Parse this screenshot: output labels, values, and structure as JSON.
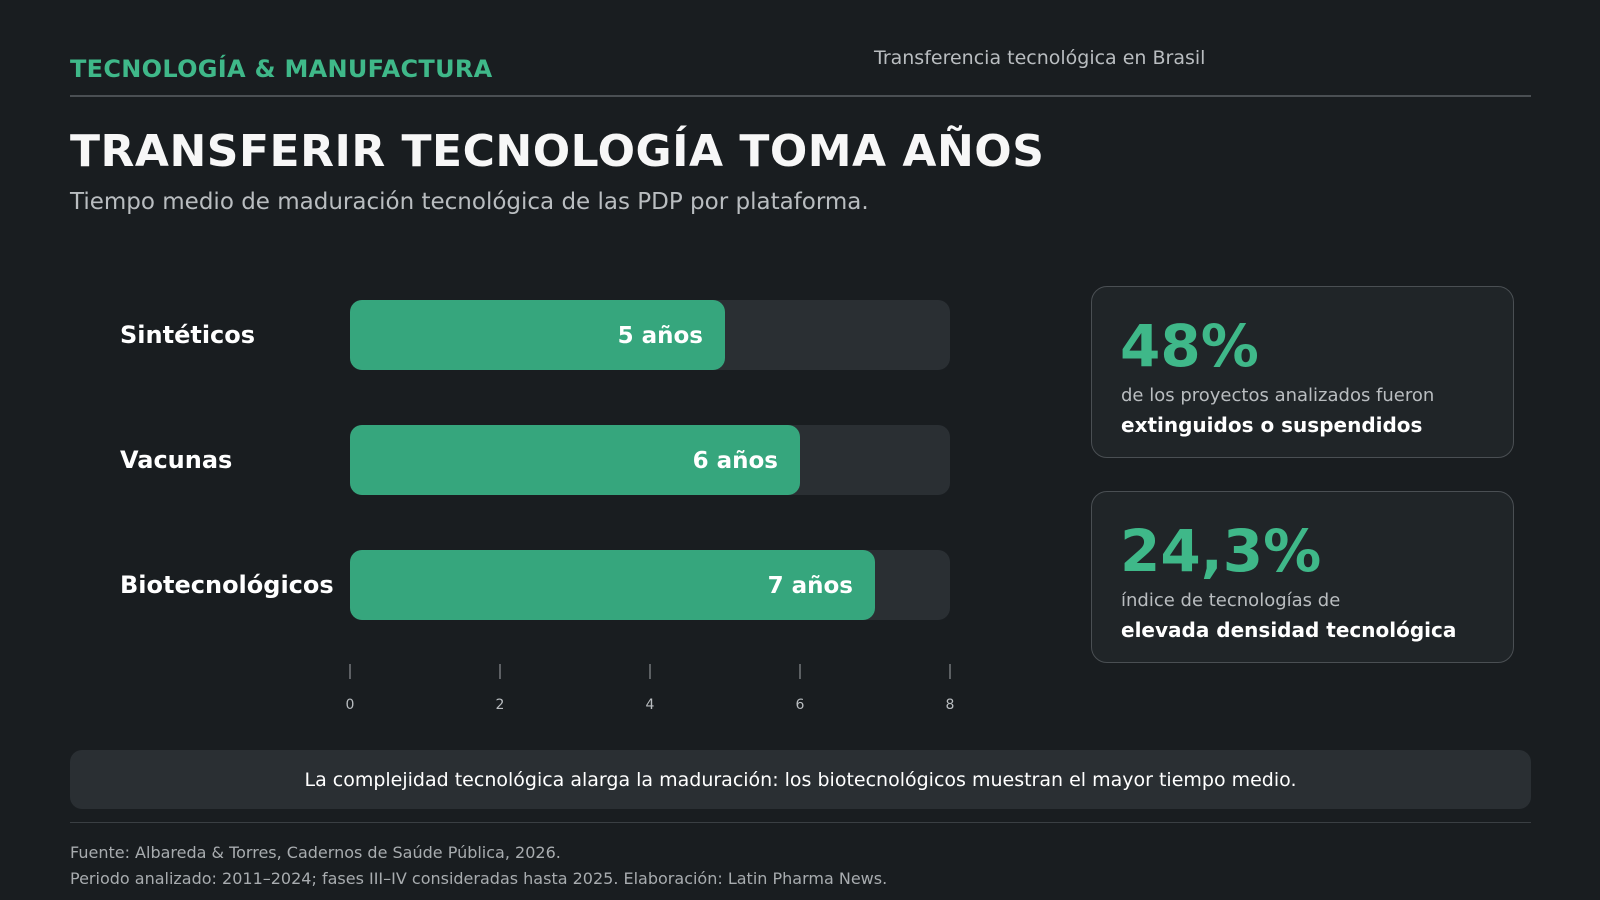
{
  "header": {
    "kicker": "TECNOLOGÍA & MANUFACTURA",
    "topic": "Transferencia tecnológica en Brasil"
  },
  "title": "TRANSFERIR TECNOLOGÍA TOMA AÑOS",
  "subtitle": "Tiempo medio de maduración tecnológica de las PDP por plataforma.",
  "chart_data": {
    "type": "bar",
    "orientation": "horizontal",
    "categories": [
      "Sintéticos",
      "Vacunas",
      "Biotecnológicos"
    ],
    "values": [
      5,
      6,
      7
    ],
    "value_labels": [
      "5 años",
      "6 años",
      "7 años"
    ],
    "xlim": [
      0,
      8
    ],
    "xticks": [
      "0",
      "2",
      "4",
      "6",
      "8"
    ],
    "grid": false,
    "bar_color": "#36a67d",
    "track_color": "#2a2f33"
  },
  "stats": [
    {
      "value": "48%",
      "line1": "de los proyectos analizados fueron",
      "line2": "extinguidos o suspendidos"
    },
    {
      "value": "24,3%",
      "line1": "índice de tecnologías de",
      "line2": "elevada densidad tecnológica"
    }
  ],
  "takeaway": "La complejidad tecnológica alarga la maduración: los biotecnológicos muestran el mayor tiempo medio.",
  "footer": {
    "source": "Fuente: Albareda & Torres, Cadernos de Saúde Pública, 2026.",
    "note": "Periodo analizado: 2011–2024; fases III–IV consideradas hasta 2025. Elaboración: Latin Pharma News."
  },
  "colors": {
    "background": "#191d20",
    "accent": "#3fb889",
    "card_border": "#4a4f53"
  }
}
